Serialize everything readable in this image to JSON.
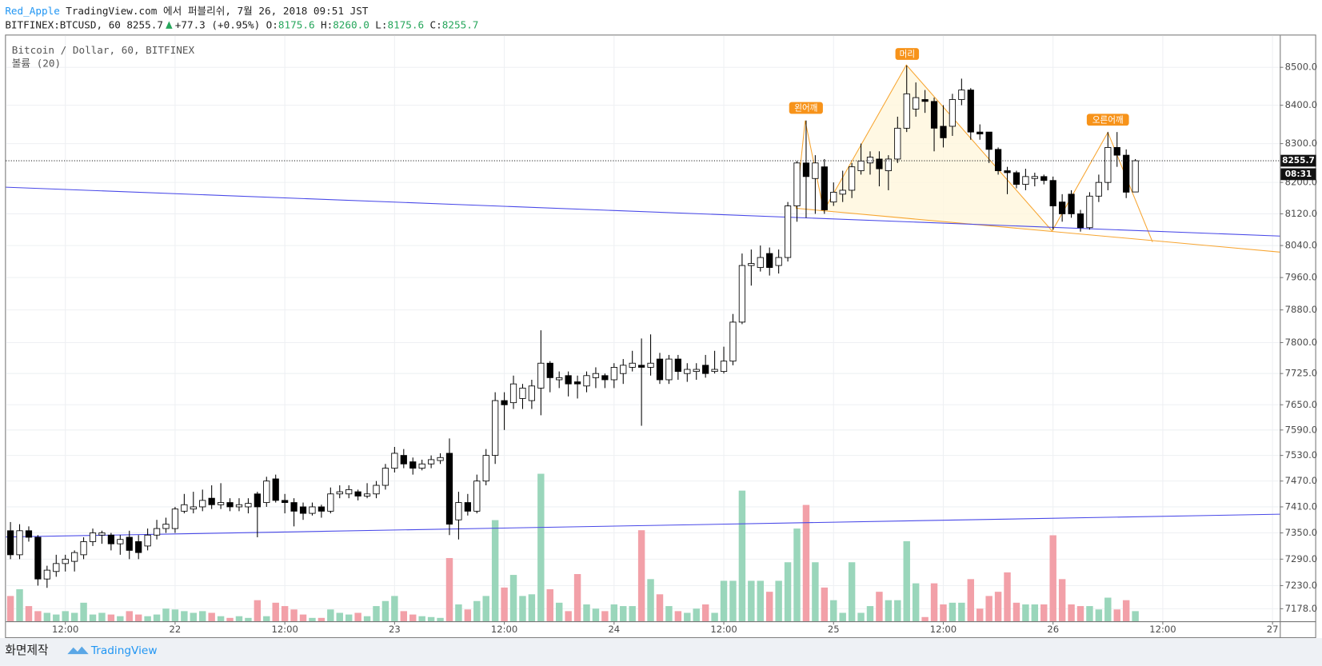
{
  "header": {
    "author": "Red_Apple",
    "published": "TradingView.com 에서 퍼블리쉬, 7월 26, 2018 09:51 JST",
    "symbol": "BITFINEX:BTCUSD, 60",
    "last": "8255.7",
    "change": "+77.3 (+0.95%)",
    "ohlc": [
      {
        "label": "O:",
        "value": "8175.6"
      },
      {
        "label": "H:",
        "value": "8260.0"
      },
      {
        "label": "L:",
        "value": "8175.6"
      },
      {
        "label": "C:",
        "value": "8255.7"
      }
    ]
  },
  "chart_data": {
    "type": "candlestick",
    "title": "Bitcoin / Dollar, 60, BITFINEX",
    "volume_label": "볼륨 (20)",
    "x": [
      0,
      1,
      2,
      3,
      4,
      5,
      6,
      7,
      8,
      9,
      10,
      11,
      12,
      13,
      14,
      15,
      16,
      17,
      18,
      19,
      20,
      21,
      22,
      23,
      24,
      25,
      26,
      27,
      28,
      29,
      30,
      31,
      32,
      33,
      34,
      35,
      36,
      37,
      38,
      39,
      40,
      41,
      42,
      43,
      44,
      45,
      46,
      47,
      48,
      49,
      50,
      51,
      52,
      53,
      54,
      55,
      56,
      57,
      58,
      59,
      60,
      61,
      62,
      63,
      64,
      65,
      66,
      67,
      68,
      69,
      70,
      71,
      72,
      73,
      74,
      75,
      76,
      77,
      78,
      79,
      80,
      81,
      82,
      83,
      84,
      85,
      86,
      87,
      88,
      89,
      90,
      91,
      92,
      93,
      94,
      95,
      96,
      97,
      98,
      99,
      100,
      101,
      102,
      103,
      104,
      105,
      106,
      107,
      108,
      109,
      110,
      111,
      112,
      113,
      114,
      115,
      116,
      117,
      118,
      119,
      120,
      121,
      122,
      123
    ],
    "open": [
      7355,
      7300,
      7355,
      7340,
      7245,
      7262,
      7280,
      7285,
      7300,
      7330,
      7345,
      7345,
      7325,
      7340,
      7330,
      7320,
      7345,
      7360,
      7360,
      7400,
      7405,
      7410,
      7430,
      7415,
      7420,
      7410,
      7410,
      7440,
      7420,
      7475,
      7425,
      7420,
      7410,
      7395,
      7410,
      7400,
      7440,
      7440,
      7445,
      7435,
      7440,
      7460,
      7500,
      7530,
      7515,
      7500,
      7510,
      7518,
      7535,
      7380,
      7420,
      7400,
      7470,
      7530,
      7660,
      7655,
      7665,
      7660,
      7690,
      7750,
      7710,
      7720,
      7705,
      7695,
      7715,
      7720,
      7710,
      7725,
      7740,
      7745,
      7740,
      7760,
      7710,
      7760,
      7725,
      7730,
      7745,
      7730,
      7730,
      7755,
      7850,
      7990,
      7985,
      8020,
      7990,
      8010,
      8140,
      8250,
      8210,
      8240,
      8150,
      8170,
      8180,
      8230,
      8250,
      8260,
      8230,
      8260,
      8340,
      8390,
      8415,
      8410,
      8345,
      8345,
      8415,
      8440,
      8330,
      8330,
      8285,
      8230,
      8225,
      8195,
      8210,
      8215,
      8205,
      8150,
      8170,
      8120,
      8085,
      8165,
      8200,
      8290,
      8270,
      8175.6
    ],
    "high": [
      7375,
      7370,
      7365,
      7345,
      7275,
      7300,
      7300,
      7310,
      7340,
      7360,
      7355,
      7350,
      7345,
      7355,
      7345,
      7360,
      7380,
      7385,
      7410,
      7440,
      7445,
      7450,
      7460,
      7465,
      7430,
      7430,
      7430,
      7445,
      7480,
      7485,
      7440,
      7430,
      7420,
      7420,
      7415,
      7455,
      7460,
      7460,
      7450,
      7465,
      7470,
      7510,
      7550,
      7545,
      7525,
      7520,
      7530,
      7535,
      7570,
      7445,
      7440,
      7485,
      7545,
      7680,
      7680,
      7720,
      7700,
      7710,
      7830,
      7755,
      7730,
      7730,
      7720,
      7730,
      7740,
      7725,
      7750,
      7760,
      7780,
      7810,
      7820,
      7775,
      7770,
      7770,
      7750,
      7750,
      7770,
      7780,
      7790,
      7870,
      8020,
      8030,
      8040,
      8035,
      8030,
      8150,
      8255,
      8360,
      8270,
      8260,
      8200,
      8230,
      8250,
      8300,
      8280,
      8280,
      8270,
      8370,
      8505,
      8460,
      8440,
      8420,
      8400,
      8430,
      8470,
      8445,
      8350,
      8330,
      8290,
      8240,
      8230,
      8235,
      8225,
      8220,
      8215,
      8170,
      8180,
      8130,
      8175,
      8220,
      8330,
      8330,
      8285,
      8260
    ],
    "low": [
      7290,
      7290,
      7330,
      7230,
      7225,
      7250,
      7262,
      7262,
      7290,
      7320,
      7325,
      7310,
      7300,
      7290,
      7290,
      7310,
      7335,
      7350,
      7350,
      7395,
      7395,
      7400,
      7405,
      7405,
      7400,
      7400,
      7395,
      7340,
      7410,
      7420,
      7395,
      7365,
      7380,
      7390,
      7385,
      7395,
      7430,
      7430,
      7425,
      7430,
      7430,
      7450,
      7490,
      7500,
      7485,
      7495,
      7500,
      7510,
      7345,
      7335,
      7390,
      7395,
      7460,
      7510,
      7590,
      7640,
      7640,
      7640,
      7625,
      7680,
      7690,
      7670,
      7665,
      7680,
      7690,
      7690,
      7690,
      7700,
      7730,
      7600,
      7720,
      7700,
      7700,
      7710,
      7705,
      7710,
      7715,
      7725,
      7725,
      7745,
      7845,
      7940,
      7975,
      7965,
      7970,
      8000,
      8100,
      8110,
      8120,
      8120,
      8140,
      8150,
      8160,
      8220,
      8220,
      8190,
      8180,
      8250,
      8330,
      8370,
      8380,
      8280,
      8290,
      8320,
      8400,
      8310,
      8310,
      8250,
      8220,
      8170,
      8185,
      8180,
      8190,
      8195,
      8080,
      8100,
      8110,
      8075,
      8080,
      8150,
      8180,
      8240,
      8160,
      8175.6
    ],
    "close": [
      7300,
      7355,
      7340,
      7245,
      7265,
      7280,
      7290,
      7305,
      7330,
      7350,
      7350,
      7325,
      7335,
      7310,
      7305,
      7345,
      7360,
      7370,
      7405,
      7415,
      7410,
      7425,
      7415,
      7420,
      7410,
      7415,
      7418,
      7410,
      7470,
      7425,
      7420,
      7400,
      7395,
      7410,
      7400,
      7440,
      7445,
      7450,
      7435,
      7440,
      7460,
      7500,
      7535,
      7510,
      7500,
      7510,
      7520,
      7525,
      7370,
      7420,
      7400,
      7470,
      7530,
      7660,
      7650,
      7700,
      7690,
      7695,
      7750,
      7715,
      7715,
      7700,
      7700,
      7720,
      7725,
      7710,
      7740,
      7745,
      7750,
      7740,
      7750,
      7710,
      7760,
      7730,
      7735,
      7735,
      7725,
      7735,
      7755,
      7850,
      7990,
      7995,
      8010,
      7985,
      8010,
      8140,
      8250,
      8215,
      8250,
      8130,
      8175,
      8180,
      8240,
      8255,
      8265,
      8235,
      8260,
      8340,
      8430,
      8420,
      8410,
      8340,
      8315,
      8415,
      8440,
      8330,
      8325,
      8285,
      8230,
      8225,
      8195,
      8215,
      8215,
      8205,
      8140,
      8120,
      8120,
      8085,
      8165,
      8200,
      8290,
      8270,
      8175,
      8255.7
    ],
    "volume": [
      30,
      38,
      18,
      12,
      10,
      8,
      12,
      10,
      22,
      8,
      10,
      8,
      6,
      12,
      8,
      6,
      8,
      15,
      14,
      12,
      10,
      12,
      10,
      6,
      4,
      6,
      4,
      25,
      6,
      22,
      18,
      14,
      8,
      4,
      4,
      14,
      10,
      8,
      10,
      6,
      18,
      24,
      30,
      12,
      8,
      6,
      5,
      4,
      75,
      20,
      14,
      24,
      30,
      120,
      40,
      55,
      30,
      32,
      175,
      38,
      22,
      12,
      56,
      20,
      15,
      12,
      20,
      18,
      18,
      108,
      50,
      32,
      18,
      12,
      10,
      15,
      20,
      10,
      48,
      48,
      155,
      48,
      48,
      35,
      48,
      70,
      110,
      138,
      70,
      40,
      25,
      10,
      70,
      10,
      18,
      35,
      25,
      25,
      95,
      45,
      5,
      45,
      20,
      22,
      22,
      50,
      15,
      30,
      35,
      58,
      22,
      20,
      20,
      20,
      102,
      50,
      20,
      18,
      18,
      14,
      28,
      14,
      25,
      12
    ],
    "volume_lim": [
      0,
      200
    ],
    "xlim": [
      -0.5,
      138.8
    ],
    "xticks": [
      {
        "value": 6,
        "label": "12:00"
      },
      {
        "value": 18,
        "label": "22"
      },
      {
        "value": 30,
        "label": "12:00"
      },
      {
        "value": 42,
        "label": "23"
      },
      {
        "value": 54,
        "label": "12:00"
      },
      {
        "value": 66,
        "label": "24"
      },
      {
        "value": 78,
        "label": "12:00"
      },
      {
        "value": 90,
        "label": "25"
      },
      {
        "value": 102,
        "label": "12:00"
      },
      {
        "value": 114,
        "label": "26"
      },
      {
        "value": 126,
        "label": "12:00"
      },
      {
        "value": 138,
        "label": "27"
      }
    ],
    "ylim": [
      7150,
      8585
    ],
    "yticks": [
      {
        "value": 8500,
        "label": "8500.0"
      },
      {
        "value": 8400,
        "label": "8400.0"
      },
      {
        "value": 8300,
        "label": "8300.0"
      },
      {
        "value": 8200,
        "label": "8200.0"
      },
      {
        "value": 8120,
        "label": "8120.0"
      },
      {
        "value": 8040,
        "label": "8040.0"
      },
      {
        "value": 7960,
        "label": "7960.0"
      },
      {
        "value": 7880,
        "label": "7880.0"
      },
      {
        "value": 7800,
        "label": "7800.0"
      },
      {
        "value": 7725,
        "label": "7725.0"
      },
      {
        "value": 7650,
        "label": "7650.0"
      },
      {
        "value": 7590,
        "label": "7590.0"
      },
      {
        "value": 7530,
        "label": "7530.0"
      },
      {
        "value": 7470,
        "label": "7470.0"
      },
      {
        "value": 7410,
        "label": "7410.0"
      },
      {
        "value": 7350,
        "label": "7350.0"
      },
      {
        "value": 7290,
        "label": "7290.0"
      },
      {
        "value": 7230,
        "label": "7230.0"
      },
      {
        "value": 7178,
        "label": "7178.0"
      }
    ],
    "log_scale": true,
    "grid": true,
    "up_color": "#ffffff",
    "down_color": "#000000",
    "wick_color": "#000000",
    "volume_up_color": "#9ad6bb",
    "volume_down_color": "#f2a0a8",
    "countdown": "08:31",
    "annotations": [
      {
        "text": "왼어깨"
      },
      {
        "text": "머리"
      },
      {
        "text": "오른어깨"
      }
    ]
  },
  "footer": {
    "caption": "화면제작",
    "brand": "TradingView"
  }
}
